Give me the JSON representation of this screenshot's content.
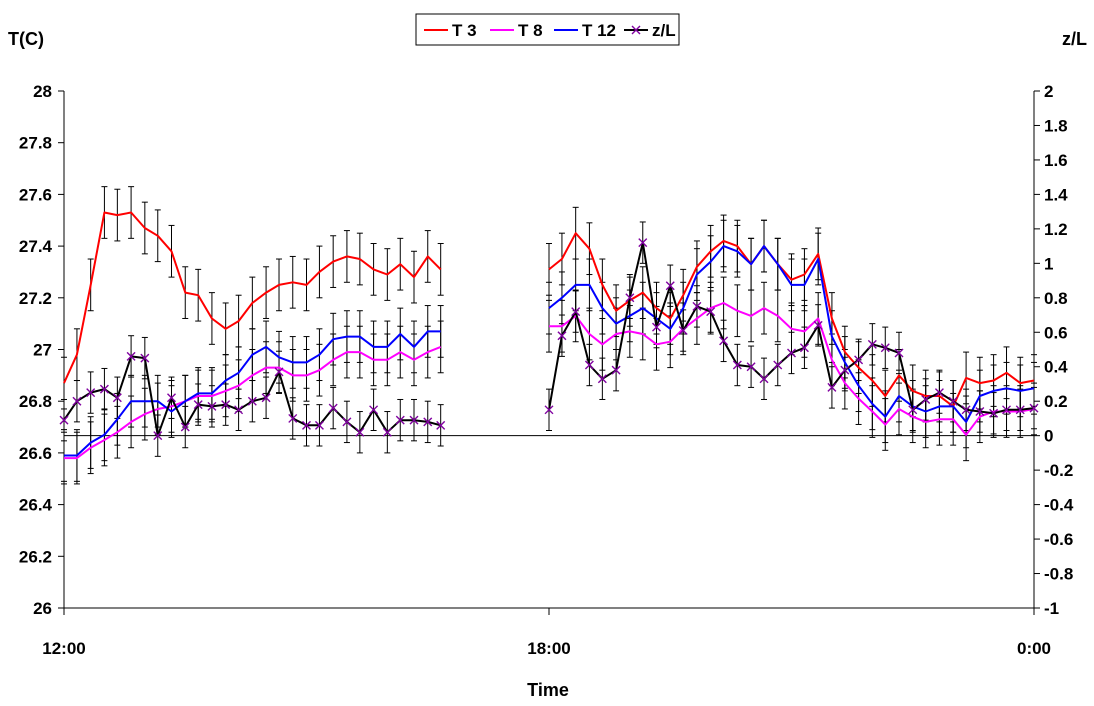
{
  "chart_data": {
    "type": "line",
    "title": "",
    "xlabel": "Time",
    "ylabel": "T(C)",
    "y2label": "z/L",
    "x_ticks": [
      "12:00",
      "18:00",
      "0:00"
    ],
    "x_tick_hours": [
      0,
      6,
      12
    ],
    "ylim": [
      26,
      28
    ],
    "y_ticks": [
      "26",
      "26.2",
      "26.4",
      "26.6",
      "26.8",
      "27",
      "27.2",
      "27.4",
      "27.6",
      "27.8",
      "28"
    ],
    "y2lim": [
      -1,
      2
    ],
    "y2_ticks": [
      "-1",
      "-0.8",
      "-0.6",
      "-0.4",
      "-0.2",
      "0",
      "0.2",
      "0.4",
      "0.6",
      "0.8",
      "1",
      "1.2",
      "1.4",
      "1.6",
      "1.8",
      "2"
    ],
    "legend_position": "top-center",
    "grid": false,
    "error_bars": true,
    "series": [
      {
        "name": "T 3",
        "axis": "left",
        "color": "#ff0000",
        "segments": [
          {
            "x": [
              0,
              0.16,
              0.33,
              0.5,
              0.66,
              0.83,
              1.0,
              1.16,
              1.33,
              1.5,
              1.66,
              1.83,
              2.0,
              2.16,
              2.33,
              2.5,
              2.66,
              2.83,
              3.0,
              3.16,
              3.33,
              3.5,
              3.66,
              3.83,
              4.0,
              4.16,
              4.33,
              4.5,
              4.66
            ],
            "y": [
              26.87,
              26.98,
              27.25,
              27.53,
              27.52,
              27.53,
              27.47,
              27.44,
              27.38,
              27.22,
              27.21,
              27.12,
              27.08,
              27.11,
              27.18,
              27.22,
              27.25,
              27.26,
              27.25,
              27.3,
              27.34,
              27.36,
              27.35,
              27.31,
              27.29,
              27.33,
              27.28,
              27.36,
              27.31
            ],
            "err": 0.1
          },
          {
            "x": [
              6.0,
              6.16,
              6.33,
              6.5,
              6.66,
              6.83,
              7.0,
              7.16,
              7.33,
              7.5,
              7.66,
              7.83,
              8.0,
              8.16,
              8.33,
              8.5,
              8.66,
              8.83,
              9.0,
              9.16,
              9.33,
              9.5,
              9.66,
              9.83,
              10.0,
              10.16,
              10.33,
              10.5,
              10.66,
              10.83,
              11.0,
              11.16,
              11.33,
              11.5,
              11.66,
              11.83,
              12.0
            ],
            "y": [
              27.31,
              27.35,
              27.45,
              27.39,
              27.25,
              27.15,
              27.19,
              27.22,
              27.16,
              27.12,
              27.21,
              27.32,
              27.38,
              27.42,
              27.4,
              27.33,
              27.4,
              27.33,
              27.27,
              27.29,
              27.37,
              27.12,
              26.99,
              26.93,
              26.88,
              26.82,
              26.9,
              26.84,
              26.82,
              26.82,
              26.78,
              26.89,
              26.87,
              26.88,
              26.91,
              26.87,
              26.88
            ],
            "err": 0.1
          }
        ]
      },
      {
        "name": "T 8",
        "axis": "left",
        "color": "#ff00ff",
        "segments": [
          {
            "x": [
              0,
              0.16,
              0.33,
              0.5,
              0.66,
              0.83,
              1.0,
              1.16,
              1.33,
              1.5,
              1.66,
              1.83,
              2.0,
              2.16,
              2.33,
              2.5,
              2.66,
              2.83,
              3.0,
              3.16,
              3.33,
              3.5,
              3.66,
              3.83,
              4.0,
              4.16,
              4.33,
              4.5,
              4.66
            ],
            "y": [
              26.58,
              26.58,
              26.62,
              26.65,
              26.68,
              26.72,
              26.75,
              26.77,
              26.78,
              26.8,
              26.82,
              26.82,
              26.84,
              26.86,
              26.9,
              26.93,
              26.93,
              26.9,
              26.9,
              26.92,
              26.96,
              26.99,
              26.99,
              26.96,
              26.96,
              26.99,
              26.96,
              26.99,
              27.01
            ],
            "err": 0.1
          },
          {
            "x": [
              6.0,
              6.16,
              6.33,
              6.5,
              6.66,
              6.83,
              7.0,
              7.16,
              7.33,
              7.5,
              7.66,
              7.83,
              8.0,
              8.16,
              8.33,
              8.5,
              8.66,
              8.83,
              9.0,
              9.16,
              9.33,
              9.5,
              9.66,
              9.83,
              10.0,
              10.16,
              10.33,
              10.5,
              10.66,
              10.83,
              11.0,
              11.16,
              11.33,
              11.5,
              11.66,
              11.83,
              12.0
            ],
            "y": [
              27.09,
              27.09,
              27.13,
              27.06,
              27.02,
              27.06,
              27.07,
              27.06,
              27.02,
              27.03,
              27.08,
              27.12,
              27.16,
              27.18,
              27.15,
              27.13,
              27.16,
              27.13,
              27.08,
              27.07,
              27.12,
              26.96,
              26.87,
              26.81,
              26.76,
              26.71,
              26.77,
              26.74,
              26.72,
              26.73,
              26.73,
              26.67,
              26.74,
              26.76,
              26.76,
              26.76,
              26.77
            ],
            "err": 0.1
          }
        ]
      },
      {
        "name": "T 12",
        "axis": "left",
        "color": "#0000ff",
        "segments": [
          {
            "x": [
              0,
              0.16,
              0.33,
              0.5,
              0.66,
              0.83,
              1.0,
              1.16,
              1.33,
              1.5,
              1.66,
              1.83,
              2.0,
              2.16,
              2.33,
              2.5,
              2.66,
              2.83,
              3.0,
              3.16,
              3.33,
              3.5,
              3.66,
              3.83,
              4.0,
              4.16,
              4.33,
              4.5,
              4.66
            ],
            "y": [
              26.59,
              26.59,
              26.64,
              26.67,
              26.73,
              26.8,
              26.8,
              26.8,
              26.76,
              26.8,
              26.83,
              26.83,
              26.88,
              26.91,
              26.98,
              27.01,
              26.97,
              26.95,
              26.95,
              26.98,
              27.04,
              27.05,
              27.05,
              27.01,
              27.01,
              27.06,
              27.01,
              27.07,
              27.07
            ],
            "err": 0.1
          },
          {
            "x": [
              6.0,
              6.16,
              6.33,
              6.5,
              6.66,
              6.83,
              7.0,
              7.16,
              7.33,
              7.5,
              7.66,
              7.83,
              8.0,
              8.16,
              8.33,
              8.5,
              8.66,
              8.83,
              9.0,
              9.16,
              9.33,
              9.5,
              9.66,
              9.83,
              10.0,
              10.16,
              10.33,
              10.5,
              10.66,
              10.83,
              11.0,
              11.16,
              11.33,
              11.5,
              11.66,
              11.83,
              12.0
            ],
            "y": [
              27.16,
              27.2,
              27.25,
              27.25,
              27.16,
              27.1,
              27.13,
              27.16,
              27.12,
              27.08,
              27.16,
              27.29,
              27.34,
              27.4,
              27.38,
              27.33,
              27.4,
              27.33,
              27.25,
              27.25,
              27.35,
              27.05,
              26.95,
              26.86,
              26.79,
              26.74,
              26.82,
              26.78,
              26.76,
              26.78,
              26.78,
              26.72,
              26.82,
              26.84,
              26.85,
              26.84,
              26.85
            ],
            "err": 0.1
          }
        ]
      },
      {
        "name": "z/L",
        "axis": "right",
        "color": "#000000",
        "marker": "x",
        "marker_color": "#8000a0",
        "segments": [
          {
            "x": [
              0,
              0.16,
              0.33,
              0.5,
              0.66,
              0.83,
              1.0,
              1.16,
              1.33,
              1.5,
              1.66,
              1.83,
              2.0,
              2.16,
              2.33,
              2.5,
              2.66,
              2.83,
              3.0,
              3.16,
              3.33,
              3.5,
              3.66,
              3.83,
              4.0,
              4.16,
              4.33,
              4.5,
              4.66
            ],
            "y": [
              0.09,
              0.2,
              0.25,
              0.27,
              0.22,
              0.46,
              0.45,
              0.0,
              0.22,
              0.05,
              0.18,
              0.17,
              0.18,
              0.15,
              0.2,
              0.22,
              0.37,
              0.1,
              0.06,
              0.06,
              0.16,
              0.08,
              0.02,
              0.15,
              0.02,
              0.09,
              0.09,
              0.08,
              0.06
            ],
            "err": 0.12
          },
          {
            "x": [
              6.0,
              6.16,
              6.33,
              6.5,
              6.66,
              6.83,
              7.0,
              7.16,
              7.33,
              7.5,
              7.66,
              7.83,
              8.0,
              8.16,
              8.33,
              8.5,
              8.66,
              8.83,
              9.0,
              9.16,
              9.33,
              9.5,
              9.66,
              9.83,
              10.0,
              10.16,
              10.33,
              10.5,
              10.66,
              10.83,
              11.0,
              11.16,
              11.33,
              11.5,
              11.66,
              11.83,
              12.0
            ],
            "y": [
              0.15,
              0.58,
              0.72,
              0.41,
              0.33,
              0.38,
              0.8,
              1.12,
              0.63,
              0.87,
              0.61,
              0.75,
              0.72,
              0.55,
              0.41,
              0.4,
              0.33,
              0.41,
              0.48,
              0.51,
              0.64,
              0.28,
              0.38,
              0.44,
              0.53,
              0.51,
              0.48,
              0.15,
              0.21,
              0.25,
              0.2,
              0.15,
              0.14,
              0.13,
              0.15,
              0.15,
              0.16
            ],
            "err": 0.12
          }
        ]
      }
    ]
  }
}
